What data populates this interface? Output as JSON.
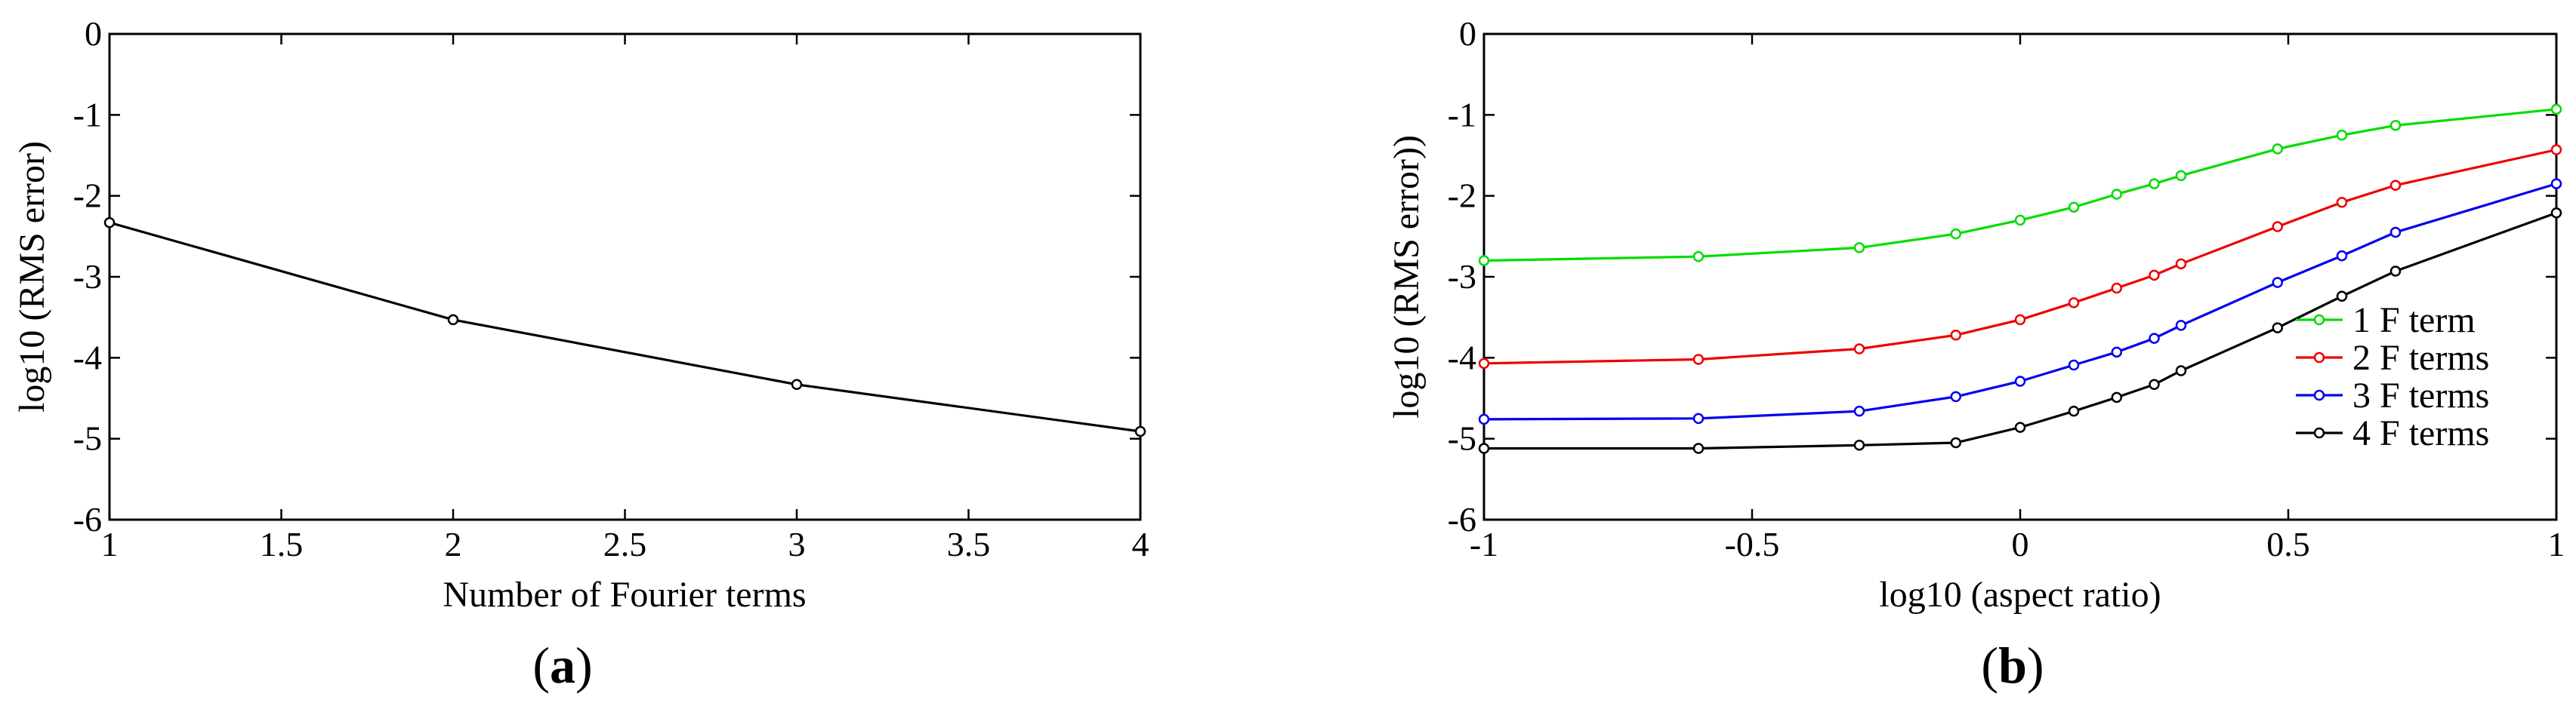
{
  "chart_data": [
    {
      "type": "line",
      "panel_label": "a",
      "xlabel": "Number of Fourier terms",
      "ylabel": "log10 (RMS error)",
      "xlim": [
        1,
        4
      ],
      "ylim": [
        -6,
        0
      ],
      "xticks": [
        "1",
        "1.5",
        "2",
        "2.5",
        "3",
        "3.5",
        "4"
      ],
      "yticks": [
        "0",
        "-1",
        "-2",
        "-3",
        "-4",
        "-5",
        "-6"
      ],
      "xtick_values": [
        1,
        1.5,
        2,
        2.5,
        3,
        3.5,
        4
      ],
      "ytick_values": [
        0,
        -1,
        -2,
        -3,
        -4,
        -5,
        -6
      ],
      "grid": false,
      "series": [
        {
          "color": "#000000",
          "x": [
            1,
            2,
            3,
            4
          ],
          "y": [
            -2.33,
            -3.53,
            -4.33,
            -4.91
          ]
        }
      ]
    },
    {
      "type": "line",
      "panel_label": "b",
      "xlabel": "log10 (aspect ratio)",
      "ylabel": "log10 (RMS error))",
      "xlim": [
        -1,
        1
      ],
      "ylim": [
        -6,
        0
      ],
      "xticks": [
        "-1",
        "-0.5",
        "0",
        "0.5",
        "1"
      ],
      "yticks": [
        "0",
        "-1",
        "-2",
        "-3",
        "-4",
        "-5",
        "-6"
      ],
      "xtick_values": [
        -1,
        -0.5,
        0,
        0.5,
        1
      ],
      "ytick_values": [
        0,
        -1,
        -2,
        -3,
        -4,
        -5,
        -6
      ],
      "grid": false,
      "legend_position": "lower-right",
      "series": [
        {
          "name": "1 F term",
          "color": "#00dd00",
          "x": [
            -1,
            -0.6,
            -0.3,
            -0.12,
            0,
            0.1,
            0.18,
            0.25,
            0.3,
            0.48,
            0.6,
            0.7,
            1
          ],
          "y": [
            -2.8,
            -2.75,
            -2.64,
            -2.47,
            -2.3,
            -2.14,
            -1.98,
            -1.85,
            -1.75,
            -1.42,
            -1.25,
            -1.13,
            -0.93
          ]
        },
        {
          "name": "2 F terms",
          "color": "#ee0000",
          "x": [
            -1,
            -0.6,
            -0.3,
            -0.12,
            0,
            0.1,
            0.18,
            0.25,
            0.3,
            0.48,
            0.6,
            0.7,
            1
          ],
          "y": [
            -4.07,
            -4.02,
            -3.89,
            -3.72,
            -3.53,
            -3.32,
            -3.14,
            -2.98,
            -2.84,
            -2.38,
            -2.08,
            -1.87,
            -1.43
          ]
        },
        {
          "name": "3 F terms",
          "color": "#0000ee",
          "x": [
            -1,
            -0.6,
            -0.3,
            -0.12,
            0,
            0.1,
            0.18,
            0.25,
            0.3,
            0.48,
            0.6,
            0.7,
            1
          ],
          "y": [
            -4.76,
            -4.75,
            -4.66,
            -4.48,
            -4.29,
            -4.09,
            -3.93,
            -3.76,
            -3.6,
            -3.07,
            -2.74,
            -2.45,
            -1.85
          ]
        },
        {
          "name": "4 F terms",
          "color": "#000000",
          "x": [
            -1,
            -0.6,
            -0.3,
            -0.12,
            0,
            0.1,
            0.18,
            0.25,
            0.3,
            0.48,
            0.6,
            0.7,
            1
          ],
          "y": [
            -5.12,
            -5.12,
            -5.08,
            -5.05,
            -4.86,
            -4.66,
            -4.49,
            -4.33,
            -4.16,
            -3.63,
            -3.24,
            -2.93,
            -2.21
          ]
        }
      ]
    }
  ]
}
